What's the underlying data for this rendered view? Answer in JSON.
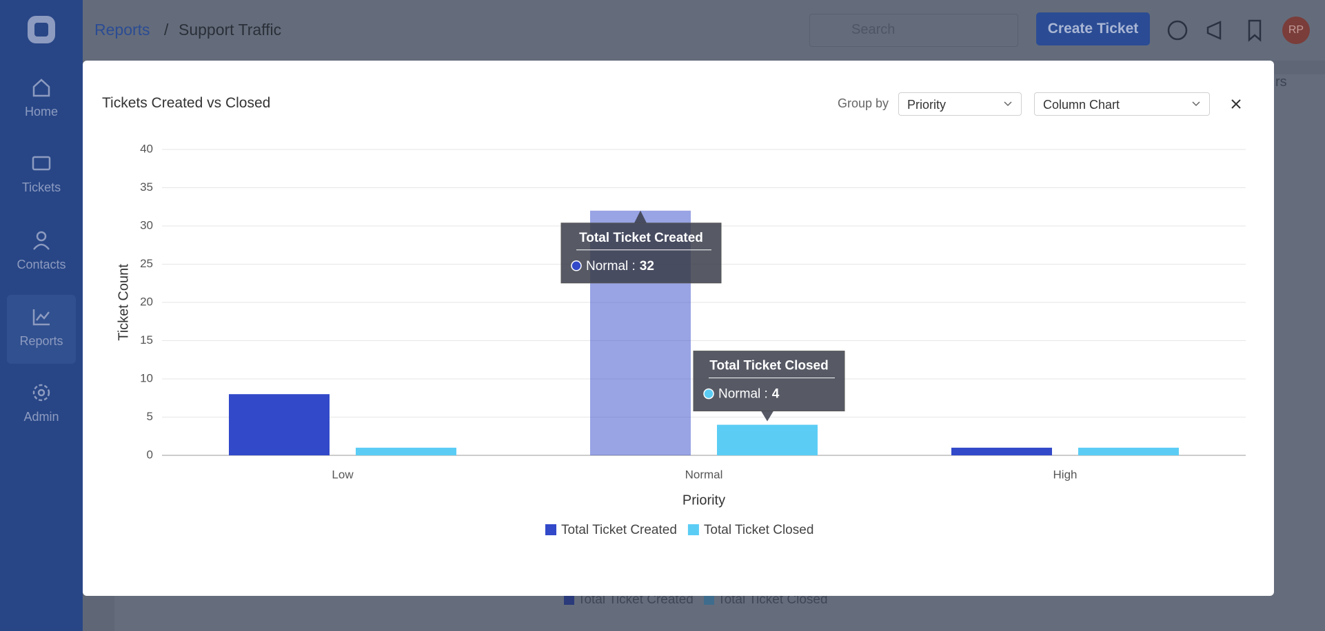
{
  "header": {
    "breadcrumb": [
      "Reports",
      "/",
      "Support Traffic"
    ],
    "search_placeholder": "Search",
    "create_button": "Create Ticket",
    "avatar": "RP"
  },
  "sidebar": {
    "items": [
      "Home",
      "Tickets",
      "Contacts",
      "Reports",
      "Admin"
    ]
  },
  "background": {
    "legend": [
      "Total Ticket Created",
      "Total Ticket Closed"
    ],
    "partial_text": "rs"
  },
  "modal": {
    "title": "Tickets Created vs Closed",
    "group_by_label": "Group by",
    "group_by_value": "Priority",
    "chart_type_value": "Column Chart"
  },
  "chart_data": {
    "type": "bar",
    "categories": [
      "Low",
      "Normal",
      "High"
    ],
    "series": [
      {
        "name": "Total Ticket Created",
        "color": "#3249c9",
        "values": [
          8,
          32,
          1
        ]
      },
      {
        "name": "Total Ticket Closed",
        "color": "#5bcdf5",
        "values": [
          1,
          4,
          1
        ]
      }
    ],
    "ylim": [
      0,
      40
    ],
    "yticks": [
      0,
      5,
      10,
      15,
      20,
      25,
      30,
      35,
      40
    ],
    "y_label": "Ticket Count",
    "x_label": "Priority",
    "grid": true,
    "legend": "bottom",
    "tooltips": [
      {
        "title": "Total Ticket Created",
        "label": "Normal :",
        "value": 32
      },
      {
        "title": "Total Ticket Closed",
        "label": "Normal :",
        "value": 4
      }
    ]
  }
}
